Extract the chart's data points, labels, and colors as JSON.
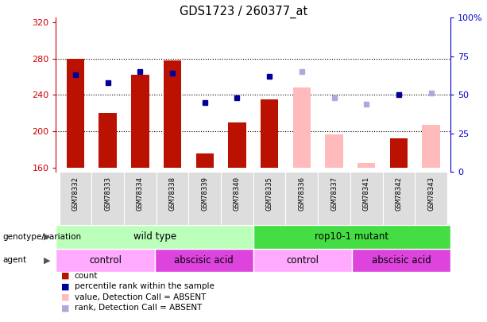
{
  "title": "GDS1723 / 260377_at",
  "samples": [
    "GSM78332",
    "GSM78333",
    "GSM78334",
    "GSM78338",
    "GSM78339",
    "GSM78340",
    "GSM78335",
    "GSM78336",
    "GSM78337",
    "GSM78341",
    "GSM78342",
    "GSM78343"
  ],
  "count_values": [
    280,
    220,
    262,
    278,
    175,
    210,
    235,
    null,
    null,
    null,
    192,
    null
  ],
  "count_absent_values": [
    null,
    null,
    null,
    null,
    null,
    null,
    null,
    248,
    196,
    165,
    null,
    207
  ],
  "percentile_present": [
    63,
    58,
    65,
    64,
    45,
    48,
    62,
    null,
    null,
    null,
    50,
    null
  ],
  "percentile_absent": [
    null,
    null,
    null,
    null,
    null,
    null,
    null,
    65,
    48,
    44,
    null,
    51
  ],
  "ylim_left": [
    155,
    325
  ],
  "ylim_right": [
    0,
    100
  ],
  "yticks_left": [
    160,
    200,
    240,
    280,
    320
  ],
  "yticks_right": [
    0,
    25,
    50,
    75,
    100
  ],
  "ylabel_left_color": "#cc0000",
  "ylabel_right_color": "#0000cc",
  "bar_color_present": "#bb1100",
  "bar_color_absent": "#ffbbbb",
  "dot_color_present": "#000099",
  "dot_color_absent": "#aaaadd",
  "baseline": 160,
  "genotype_groups": [
    {
      "label": "wild type",
      "start": 0,
      "end": 6,
      "color": "#bbffbb"
    },
    {
      "label": "rop10-1 mutant",
      "start": 6,
      "end": 12,
      "color": "#44dd44"
    }
  ],
  "agent_groups": [
    {
      "label": "control",
      "start": 0,
      "end": 3,
      "color": "#ffaaff"
    },
    {
      "label": "abscisic acid",
      "start": 3,
      "end": 6,
      "color": "#dd44dd"
    },
    {
      "label": "control",
      "start": 6,
      "end": 9,
      "color": "#ffaaff"
    },
    {
      "label": "abscisic acid",
      "start": 9,
      "end": 12,
      "color": "#dd44dd"
    }
  ],
  "legend_items": [
    {
      "label": "count",
      "color": "#bb1100"
    },
    {
      "label": "percentile rank within the sample",
      "color": "#000099"
    },
    {
      "label": "value, Detection Call = ABSENT",
      "color": "#ffbbbb"
    },
    {
      "label": "rank, Detection Call = ABSENT",
      "color": "#aaaadd"
    }
  ],
  "background_color": "#ffffff",
  "xticklabel_bg": "#dddddd"
}
